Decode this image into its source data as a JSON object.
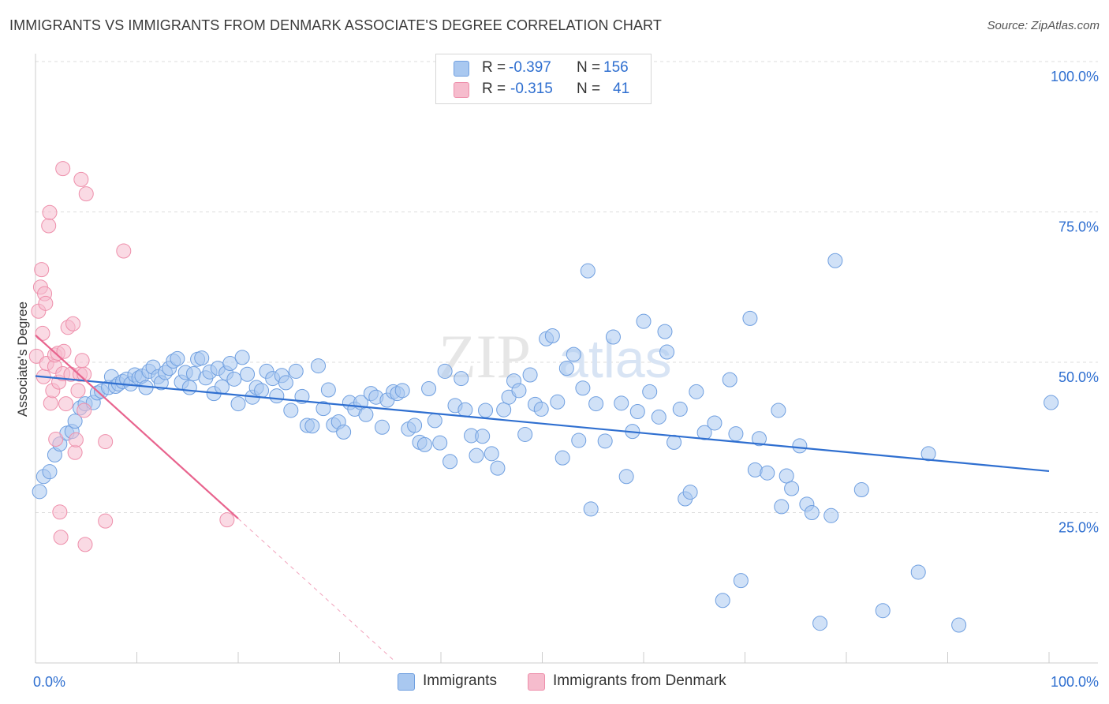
{
  "title": "IMMIGRANTS VS IMMIGRANTS FROM DENMARK ASSOCIATE'S DEGREE CORRELATION CHART",
  "source": "Source: ZipAtlas.com",
  "watermark": {
    "zip": "ZIP",
    "atlas": "atlas"
  },
  "legend": {
    "rows": [
      {
        "r_label": "R =",
        "r_value": "-0.397",
        "n_label": "N =",
        "n_value": "156"
      },
      {
        "r_label": "R =",
        "r_value": "-0.315",
        "n_label": "N =",
        "n_value": "41"
      }
    ]
  },
  "bottom_legend": [
    "Immigrants",
    "Immigrants from Denmark"
  ],
  "colors": {
    "blue_fill": "#a9c8f0",
    "blue_stroke": "#6f9fe0",
    "blue_line": "#2f6fd0",
    "pink_fill": "#f6bccd",
    "pink_stroke": "#ee8fab",
    "pink_line": "#e8648e",
    "axis_text": "#2f6fd0",
    "grid": "#dddddd"
  },
  "chart_data": {
    "type": "scatter",
    "title": "IMMIGRANTS VS IMMIGRANTS FROM DENMARK ASSOCIATE'S DEGREE CORRELATION CHART",
    "xlabel": "",
    "ylabel": "Associate's Degree",
    "xlim": [
      0,
      100
    ],
    "ylim": [
      0,
      100
    ],
    "x_tick_labels": [
      "0.0%",
      "100.0%"
    ],
    "y_tick_labels": [
      "25.0%",
      "50.0%",
      "75.0%",
      "100.0%"
    ],
    "grid": true,
    "legend_position": "top-center",
    "series": [
      {
        "name": "Immigrants",
        "color": "#a9c8f0",
        "trend": {
          "x": [
            0,
            100
          ],
          "y": [
            47.7,
            31.9
          ]
        },
        "points": [
          [
            0.4,
            28.5
          ],
          [
            0.8,
            31.0
          ],
          [
            1.4,
            31.8
          ],
          [
            1.9,
            34.6
          ],
          [
            2.4,
            36.4
          ],
          [
            3.1,
            38.2
          ],
          [
            3.6,
            38.5
          ],
          [
            3.9,
            40.2
          ],
          [
            4.4,
            42.4
          ],
          [
            4.9,
            43.1
          ],
          [
            5.7,
            43.3
          ],
          [
            6.1,
            44.9
          ],
          [
            6.5,
            45.2
          ],
          [
            7.2,
            45.8
          ],
          [
            7.5,
            47.6
          ],
          [
            7.9,
            46.0
          ],
          [
            8.2,
            46.4
          ],
          [
            8.6,
            46.8
          ],
          [
            9.0,
            47.2
          ],
          [
            9.4,
            46.4
          ],
          [
            9.8,
            47.9
          ],
          [
            10.2,
            47.4
          ],
          [
            10.5,
            47.7
          ],
          [
            10.9,
            45.8
          ],
          [
            11.2,
            48.5
          ],
          [
            11.6,
            49.2
          ],
          [
            12.1,
            47.6
          ],
          [
            12.4,
            46.6
          ],
          [
            12.8,
            48.3
          ],
          [
            13.2,
            49.0
          ],
          [
            13.6,
            50.2
          ],
          [
            14.0,
            50.6
          ],
          [
            14.4,
            46.7
          ],
          [
            14.8,
            48.3
          ],
          [
            15.2,
            45.8
          ],
          [
            15.6,
            48.1
          ],
          [
            16.0,
            50.5
          ],
          [
            16.4,
            50.7
          ],
          [
            16.8,
            47.4
          ],
          [
            17.2,
            48.4
          ],
          [
            17.6,
            44.8
          ],
          [
            18.0,
            49.0
          ],
          [
            18.4,
            45.9
          ],
          [
            18.8,
            48.2
          ],
          [
            19.2,
            49.8
          ],
          [
            19.6,
            47.2
          ],
          [
            20.0,
            43.1
          ],
          [
            20.4,
            50.8
          ],
          [
            20.9,
            48.0
          ],
          [
            21.4,
            44.2
          ],
          [
            21.8,
            45.8
          ],
          [
            22.3,
            45.3
          ],
          [
            22.8,
            48.5
          ],
          [
            23.4,
            47.3
          ],
          [
            23.8,
            44.4
          ],
          [
            24.3,
            47.8
          ],
          [
            24.7,
            46.6
          ],
          [
            25.2,
            42.0
          ],
          [
            25.7,
            48.5
          ],
          [
            26.3,
            44.3
          ],
          [
            26.8,
            39.5
          ],
          [
            27.3,
            39.4
          ],
          [
            27.9,
            49.4
          ],
          [
            28.4,
            42.3
          ],
          [
            28.9,
            45.4
          ],
          [
            29.4,
            39.6
          ],
          [
            29.9,
            40.1
          ],
          [
            30.4,
            38.4
          ],
          [
            31.0,
            43.3
          ],
          [
            31.5,
            42.2
          ],
          [
            32.1,
            43.3
          ],
          [
            32.6,
            41.3
          ],
          [
            33.1,
            44.8
          ],
          [
            33.6,
            44.2
          ],
          [
            34.2,
            39.2
          ],
          [
            34.7,
            43.7
          ],
          [
            35.3,
            45.1
          ],
          [
            35.7,
            44.8
          ],
          [
            36.2,
            45.3
          ],
          [
            36.8,
            38.9
          ],
          [
            37.4,
            39.5
          ],
          [
            37.9,
            36.7
          ],
          [
            38.4,
            36.3
          ],
          [
            38.8,
            45.6
          ],
          [
            39.4,
            40.3
          ],
          [
            39.9,
            36.6
          ],
          [
            40.4,
            48.5
          ],
          [
            40.9,
            33.5
          ],
          [
            41.4,
            42.8
          ],
          [
            42.0,
            47.3
          ],
          [
            42.4,
            42.1
          ],
          [
            43.0,
            37.8
          ],
          [
            43.5,
            34.5
          ],
          [
            44.1,
            37.7
          ],
          [
            44.4,
            42.0
          ],
          [
            45.0,
            34.8
          ],
          [
            45.6,
            32.4
          ],
          [
            46.2,
            42.1
          ],
          [
            46.7,
            44.2
          ],
          [
            47.2,
            46.9
          ],
          [
            47.7,
            45.3
          ],
          [
            48.3,
            38.0
          ],
          [
            48.8,
            47.9
          ],
          [
            49.3,
            43.0
          ],
          [
            49.9,
            42.2
          ],
          [
            50.4,
            53.9
          ],
          [
            51.0,
            54.4
          ],
          [
            51.5,
            43.4
          ],
          [
            52.0,
            34.1
          ],
          [
            52.4,
            49.0
          ],
          [
            53.1,
            51.3
          ],
          [
            53.6,
            37.0
          ],
          [
            54.0,
            45.7
          ],
          [
            54.5,
            65.2
          ],
          [
            54.8,
            25.6
          ],
          [
            55.3,
            43.1
          ],
          [
            56.2,
            36.9
          ],
          [
            57.0,
            54.2
          ],
          [
            57.8,
            43.2
          ],
          [
            58.3,
            31.0
          ],
          [
            58.9,
            38.5
          ],
          [
            59.4,
            41.8
          ],
          [
            60.0,
            56.8
          ],
          [
            60.6,
            45.1
          ],
          [
            61.5,
            40.9
          ],
          [
            62.1,
            55.1
          ],
          [
            62.3,
            51.7
          ],
          [
            63.0,
            36.7
          ],
          [
            63.6,
            42.2
          ],
          [
            64.1,
            27.3
          ],
          [
            64.6,
            28.4
          ],
          [
            65.2,
            45.1
          ],
          [
            66.0,
            38.3
          ],
          [
            67.0,
            39.9
          ],
          [
            67.8,
            10.4
          ],
          [
            68.5,
            47.1
          ],
          [
            69.1,
            38.1
          ],
          [
            69.6,
            13.7
          ],
          [
            70.5,
            57.3
          ],
          [
            71.0,
            32.1
          ],
          [
            71.4,
            37.3
          ],
          [
            72.2,
            31.6
          ],
          [
            73.3,
            42.0
          ],
          [
            73.6,
            26.0
          ],
          [
            74.1,
            31.1
          ],
          [
            74.6,
            29.0
          ],
          [
            75.4,
            36.1
          ],
          [
            76.1,
            26.4
          ],
          [
            76.6,
            25.0
          ],
          [
            77.4,
            6.6
          ],
          [
            78.5,
            24.5
          ],
          [
            78.9,
            66.9
          ],
          [
            81.5,
            28.8
          ],
          [
            83.6,
            8.7
          ],
          [
            87.1,
            15.1
          ],
          [
            88.1,
            34.8
          ],
          [
            91.1,
            6.3
          ],
          [
            100.2,
            43.3
          ]
        ]
      },
      {
        "name": "Immigrants from Denmark",
        "color": "#f6bccd",
        "trend": {
          "x": [
            0,
            20
          ],
          "y": [
            54.5,
            24.0
          ]
        },
        "dashed_extension": {
          "x": [
            20,
            35.5
          ],
          "y": [
            24.0,
            0.2
          ]
        },
        "points": [
          [
            0.1,
            51.0
          ],
          [
            0.3,
            58.5
          ],
          [
            0.5,
            62.5
          ],
          [
            0.6,
            65.4
          ],
          [
            0.7,
            54.8
          ],
          [
            0.8,
            47.6
          ],
          [
            0.9,
            61.4
          ],
          [
            1.0,
            59.8
          ],
          [
            1.1,
            49.8
          ],
          [
            1.3,
            72.7
          ],
          [
            1.4,
            74.9
          ],
          [
            1.5,
            43.2
          ],
          [
            1.7,
            45.3
          ],
          [
            1.9,
            49.3
          ],
          [
            1.9,
            51.2
          ],
          [
            2.0,
            37.2
          ],
          [
            2.2,
            51.5
          ],
          [
            2.3,
            46.7
          ],
          [
            2.4,
            25.1
          ],
          [
            2.5,
            20.9
          ],
          [
            2.7,
            82.2
          ],
          [
            2.7,
            48.1
          ],
          [
            2.8,
            51.8
          ],
          [
            3.0,
            43.1
          ],
          [
            3.2,
            55.8
          ],
          [
            3.5,
            48.0
          ],
          [
            3.7,
            56.4
          ],
          [
            3.9,
            35.0
          ],
          [
            4.0,
            37.1
          ],
          [
            4.2,
            45.3
          ],
          [
            4.4,
            48.0
          ],
          [
            4.5,
            80.4
          ],
          [
            4.6,
            50.3
          ],
          [
            4.8,
            42.0
          ],
          [
            4.8,
            48.0
          ],
          [
            4.9,
            19.7
          ],
          [
            5.0,
            78.0
          ],
          [
            6.9,
            36.8
          ],
          [
            6.9,
            23.6
          ],
          [
            8.7,
            68.5
          ],
          [
            18.9,
            23.8
          ]
        ]
      }
    ]
  }
}
